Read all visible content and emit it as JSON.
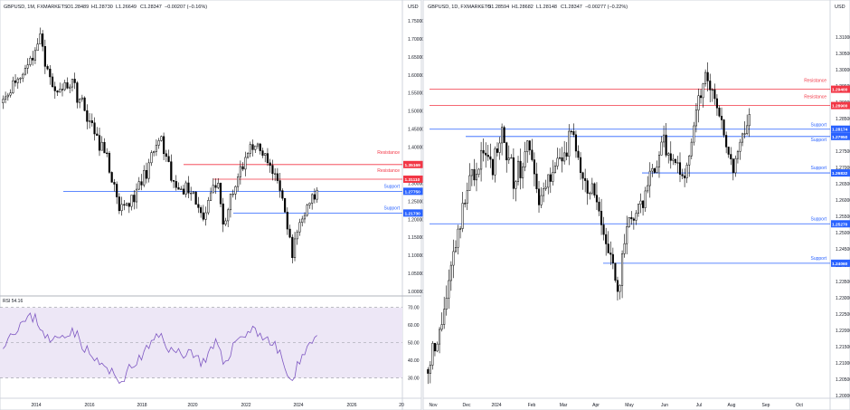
{
  "colors": {
    "support": "#2962ff",
    "resistance": "#f23645",
    "candle_up": "#ffffff",
    "candle_down": "#000000",
    "rsi_line": "#7e57c2",
    "rsi_band": "#ede7f6",
    "axis_text": "#131722",
    "grid_dash": "#9598a1"
  },
  "left_panel": {
    "header": {
      "symbol": "GBPUSD, 1M, FXMARKETS",
      "open": "O1.28489",
      "high": "H1.28730",
      "low": "L1.26649",
      "close": "C1.28347",
      "change": "−0.00207 (−0.16%)"
    },
    "currency": "USD",
    "price_axis": [
      "1.75000",
      "1.70000",
      "1.65000",
      "1.60000",
      "1.55000",
      "1.50000",
      "1.45000",
      "1.40000",
      "1.35000",
      "1.30000",
      "1.25000",
      "1.20000",
      "1.15000",
      "1.10000",
      "1.05000",
      "1.00000"
    ],
    "time_axis": [
      "2014",
      "2016",
      "2018",
      "2020",
      "2022",
      "2024",
      "2026",
      "20"
    ],
    "levels": [
      {
        "label": "Resistance",
        "value": "1.35169",
        "type": "resistance"
      },
      {
        "label": "Resistance",
        "value": "1.31110",
        "type": "resistance"
      },
      {
        "label": "Support",
        "value": "1.27750",
        "type": "support"
      },
      {
        "label": "Support",
        "value": "1.21730",
        "type": "support"
      }
    ],
    "rsi": {
      "label": "RSI 54.16",
      "axis": [
        "70.00",
        "60.00",
        "50.00",
        "40.00",
        "30.00"
      ]
    }
  },
  "right_panel": {
    "header": {
      "symbol": "GBPUSD, 1D, FXMARKETS",
      "open": "O1.28594",
      "high": "H1.28682",
      "low": "L1.28148",
      "close": "C1.28347",
      "change": "−0.00277 (−0.22%)"
    },
    "currency": "USD",
    "price_axis": [
      "1.31000",
      "1.30500",
      "1.30000",
      "1.29500",
      "1.29000",
      "1.28500",
      "1.28000",
      "1.27500",
      "1.27000",
      "1.26500",
      "1.26000",
      "1.25500",
      "1.25000",
      "1.24500",
      "1.24000",
      "1.23500",
      "1.23000",
      "1.22500",
      "1.22000",
      "1.21500",
      "1.21000",
      "1.20500",
      "1.20000"
    ],
    "time_axis": [
      "Nov",
      "Dec",
      "2024",
      "Feb",
      "Mar",
      "Apr",
      "May",
      "Jun",
      "Jul",
      "Aug",
      "Sep",
      "Oct"
    ],
    "levels": [
      {
        "label": "Resistance",
        "value": "1.29400",
        "type": "resistance"
      },
      {
        "label": "Resistance",
        "value": "1.28900",
        "type": "resistance"
      },
      {
        "label": "Support",
        "value": "1.28174",
        "type": "support"
      },
      {
        "label": "Support",
        "value": "1.27950",
        "type": "support"
      },
      {
        "label": "Support",
        "value": "1.26832",
        "type": "support"
      },
      {
        "label": "Support",
        "value": "1.25270",
        "type": "support"
      },
      {
        "label": "Support",
        "value": "1.24060",
        "type": "support"
      }
    ]
  },
  "chart_data": [
    {
      "type": "line",
      "title": "GBPUSD, 1M, FXMARKETS",
      "ylim": [
        1.0,
        1.75
      ],
      "x": [
        "2013-06",
        "2014-01",
        "2014-07",
        "2015-01",
        "2015-07",
        "2016-01",
        "2016-06",
        "2016-10",
        "2017-06",
        "2018-01",
        "2018-07",
        "2019-01",
        "2019-08",
        "2020-01",
        "2020-03",
        "2020-07",
        "2021-01",
        "2021-05",
        "2021-10",
        "2022-03",
        "2022-06",
        "2022-09",
        "2023-01",
        "2023-07",
        "2023-10",
        "2024-03",
        "2024-08"
      ],
      "series": [
        {
          "values": [
            1.54,
            1.68,
            1.71,
            1.52,
            1.56,
            1.43,
            1.33,
            1.23,
            1.29,
            1.42,
            1.31,
            1.3,
            1.21,
            1.31,
            1.17,
            1.3,
            1.37,
            1.41,
            1.36,
            1.31,
            1.21,
            1.07,
            1.22,
            1.28,
            1.22,
            1.26,
            1.28
          ]
        }
      ],
      "levels": [
        1.35169,
        1.3111,
        1.2775,
        1.2173
      ]
    },
    {
      "type": "line",
      "title": "RSI 54.16",
      "ylim": [
        20,
        75
      ],
      "x": [
        "2013-06",
        "2014-01",
        "2014-07",
        "2015-01",
        "2015-07",
        "2016-01",
        "2016-06",
        "2016-10",
        "2017-06",
        "2018-01",
        "2018-07",
        "2019-01",
        "2019-08",
        "2020-01",
        "2020-03",
        "2020-07",
        "2021-01",
        "2021-05",
        "2021-10",
        "2022-03",
        "2022-06",
        "2022-09",
        "2023-01",
        "2023-07",
        "2023-10",
        "2024-03",
        "2024-08"
      ],
      "series": [
        {
          "values": [
            48,
            62,
            64,
            44,
            55,
            42,
            36,
            30,
            42,
            55,
            45,
            44,
            38,
            48,
            38,
            51,
            57,
            59,
            52,
            45,
            36,
            25,
            43,
            52,
            44,
            51,
            54
          ]
        }
      ]
    },
    {
      "type": "line",
      "title": "GBPUSD, 1D, FXMARKETS",
      "ylim": [
        1.2,
        1.31
      ],
      "x": [
        "2023-10-27",
        "2023-11-08",
        "2023-11-22",
        "2023-12-05",
        "2023-12-14",
        "2023-12-28",
        "2024-01-12",
        "2024-01-25",
        "2024-02-05",
        "2024-02-22",
        "2024-03-08",
        "2024-03-21",
        "2024-04-04",
        "2024-04-22",
        "2024-05-03",
        "2024-05-15",
        "2024-05-31",
        "2024-06-12",
        "2024-06-24",
        "2024-07-03",
        "2024-07-17",
        "2024-07-26",
        "2024-08-05",
        "2024-08-08",
        "2024-08-16"
      ],
      "series": [
        {
          "values": [
            1.21,
            1.225,
            1.255,
            1.26,
            1.275,
            1.278,
            1.275,
            1.276,
            1.258,
            1.266,
            1.285,
            1.27,
            1.262,
            1.235,
            1.255,
            1.262,
            1.275,
            1.282,
            1.265,
            1.273,
            1.3,
            1.286,
            1.275,
            1.269,
            1.284
          ]
        }
      ],
      "levels": [
        1.294,
        1.289,
        1.28174,
        1.2795,
        1.26832,
        1.2527,
        1.2406
      ]
    }
  ]
}
